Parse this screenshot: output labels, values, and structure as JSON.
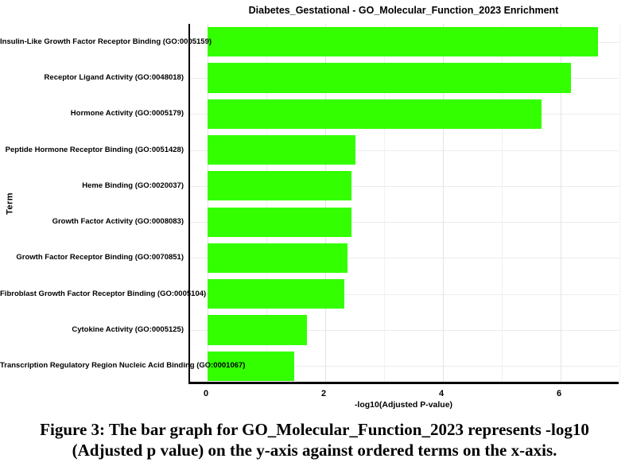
{
  "figure": {
    "caption": {
      "line1": "Figure 3: The bar graph for GO_Molecular_Function_2023 represents -log10",
      "line2": "(Adjusted p value) on the y-axis against ordered terms on the x-axis."
    }
  },
  "chart_data": {
    "type": "bar",
    "orientation": "horizontal",
    "title": "Diabetes_Gestational - GO_Molecular_Function_2023 Enrichment",
    "xlabel": "-log10(Adjusted P-value)",
    "ylabel": "Term",
    "xlim": [
      0,
      7
    ],
    "xticks": [
      0,
      2,
      4,
      6
    ],
    "grid": true,
    "legend": false,
    "bar_color": "#33ff00",
    "categories": [
      "Insulin-Like Growth Factor Receptor Binding (GO:0005159)",
      "Receptor Ligand Activity (GO:0048018)",
      "Hormone Activity (GO:0005179)",
      "Peptide Hormone Receptor Binding (GO:0051428)",
      "Heme Binding (GO:0020037)",
      "Growth Factor Activity (GO:0008083)",
      "Growth Factor Receptor Binding (GO:0070851)",
      "Fibroblast Growth Factor Receptor Binding (GO:0005104)",
      "Cytokine Activity (GO:0005125)",
      "Transcription Regulatory Region Nucleic Acid Binding (GO:0001067)"
    ],
    "values": [
      6.63,
      6.18,
      5.67,
      2.51,
      2.45,
      2.45,
      2.38,
      2.33,
      1.69,
      1.47
    ]
  }
}
